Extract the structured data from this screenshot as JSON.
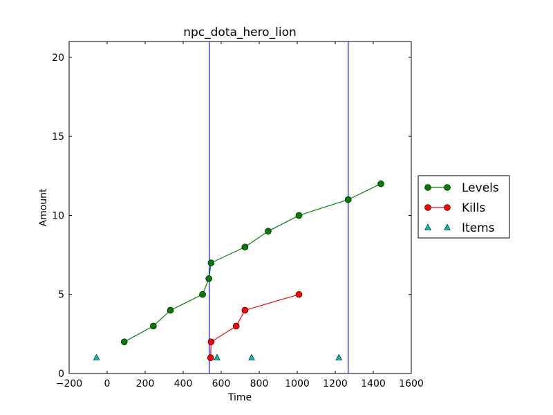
{
  "chart_data": {
    "type": "line",
    "title": "npc_dota_hero_lion",
    "xlabel": "Time",
    "ylabel": "Amount",
    "xlim": [
      -200,
      1600
    ],
    "ylim": [
      0,
      21
    ],
    "xticks": [
      -200,
      0,
      200,
      400,
      600,
      800,
      1000,
      1200,
      1400,
      1600
    ],
    "xtick_labels": [
      "−200",
      "0",
      "200",
      "400",
      "600",
      "800",
      "1000",
      "1200",
      "1400",
      "1600"
    ],
    "yticks": [
      0,
      5,
      10,
      15,
      20
    ],
    "ytick_labels": [
      "0",
      "5",
      "10",
      "15",
      "20"
    ],
    "grid": false,
    "legend_position": "right-outside",
    "series": [
      {
        "name": "Levels",
        "style": "line-circle",
        "color": "#007f00",
        "x": [
          90,
          243,
          333,
          502,
          535,
          547,
          725,
          847,
          1009,
          1268,
          1440
        ],
        "y": [
          2,
          3,
          4,
          5,
          6,
          7,
          8,
          9,
          10,
          11,
          12
        ]
      },
      {
        "name": "Kills",
        "style": "line-circle",
        "color": "#ff0000",
        "x": [
          544,
          547,
          679,
          725,
          1009
        ],
        "y": [
          1,
          2,
          3,
          4,
          5
        ]
      },
      {
        "name": "Items",
        "style": "triangle",
        "color": "#00bfbf",
        "x": [
          -56,
          578,
          760,
          1219
        ],
        "y": [
          1,
          1,
          1,
          1
        ]
      }
    ],
    "vlines": {
      "color": "#0000ff",
      "x": [
        537,
        1268
      ]
    }
  }
}
